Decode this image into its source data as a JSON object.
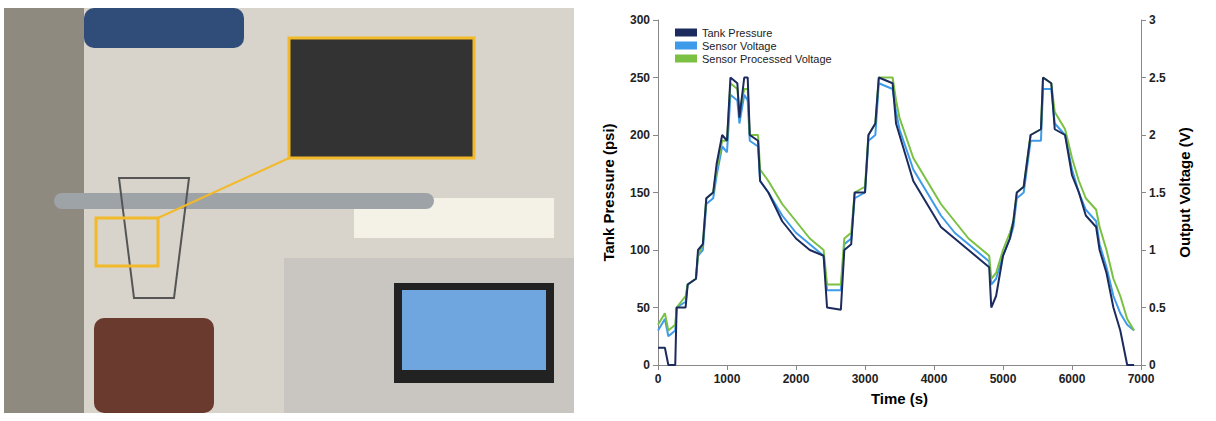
{
  "chart_data": {
    "type": "line",
    "xlabel": "Time (s)",
    "ylabel": "Tank Pressure (psi)",
    "y2label": "Output Voltage (V)",
    "x": [
      0,
      100,
      150,
      250,
      270,
      400,
      430,
      550,
      580,
      650,
      700,
      800,
      850,
      930,
      1000,
      1050,
      1150,
      1180,
      1250,
      1300,
      1330,
      1450,
      1480,
      1600,
      1800,
      2000,
      2200,
      2400,
      2450,
      2650,
      2700,
      2800,
      2850,
      3000,
      3050,
      3150,
      3200,
      3400,
      3450,
      3500,
      3700,
      3900,
      4100,
      4300,
      4500,
      4700,
      4800,
      4830,
      4900,
      5000,
      5100,
      5150,
      5200,
      5300,
      5400,
      5550,
      5580,
      5700,
      5750,
      5900,
      6000,
      6100,
      6200,
      6350,
      6400,
      6500,
      6600,
      6700,
      6800,
      6900
    ],
    "series": [
      {
        "name": "Tank Pressure",
        "color": "#1c2b5e",
        "values": [
          15,
          15,
          0,
          0,
          50,
          50,
          70,
          75,
          100,
          105,
          145,
          150,
          175,
          200,
          195,
          250,
          245,
          215,
          250,
          250,
          200,
          195,
          160,
          150,
          125,
          110,
          100,
          95,
          50,
          48,
          100,
          105,
          150,
          150,
          200,
          210,
          250,
          245,
          210,
          200,
          160,
          140,
          120,
          110,
          100,
          90,
          85,
          50,
          60,
          95,
          110,
          125,
          150,
          155,
          200,
          205,
          250,
          245,
          205,
          200,
          165,
          150,
          130,
          120,
          100,
          80,
          50,
          30,
          0,
          0
        ]
      },
      {
        "name": "Sensor Voltage",
        "color": "#3d9be9",
        "axis": "y2",
        "values": [
          0.3,
          0.4,
          0.25,
          0.3,
          0.5,
          0.55,
          0.7,
          0.75,
          0.95,
          1.0,
          1.4,
          1.45,
          1.65,
          1.9,
          1.85,
          2.35,
          2.3,
          2.1,
          2.35,
          2.3,
          1.95,
          1.9,
          1.6,
          1.5,
          1.3,
          1.15,
          1.05,
          0.95,
          0.65,
          0.65,
          1.05,
          1.1,
          1.45,
          1.5,
          1.95,
          2.0,
          2.45,
          2.4,
          2.2,
          2.05,
          1.7,
          1.5,
          1.3,
          1.15,
          1.05,
          0.95,
          0.9,
          0.7,
          0.75,
          0.95,
          1.1,
          1.2,
          1.45,
          1.5,
          1.95,
          1.95,
          2.4,
          2.4,
          2.1,
          2.0,
          1.7,
          1.5,
          1.35,
          1.25,
          1.05,
          0.85,
          0.6,
          0.45,
          0.35,
          0.3
        ]
      },
      {
        "name": "Sensor Processed Voltage",
        "color": "#7ac143",
        "axis": "y2",
        "values": [
          0.35,
          0.45,
          0.3,
          0.35,
          0.5,
          0.6,
          0.7,
          0.75,
          0.95,
          1.05,
          1.45,
          1.5,
          1.7,
          1.95,
          1.95,
          2.45,
          2.4,
          2.2,
          2.4,
          2.4,
          2.0,
          2.0,
          1.7,
          1.6,
          1.4,
          1.25,
          1.1,
          1.0,
          0.7,
          0.7,
          1.1,
          1.15,
          1.5,
          1.55,
          2.0,
          2.1,
          2.5,
          2.5,
          2.3,
          2.15,
          1.8,
          1.6,
          1.4,
          1.25,
          1.1,
          1.0,
          0.95,
          0.75,
          0.8,
          1.0,
          1.15,
          1.25,
          1.5,
          1.55,
          2.0,
          2.05,
          2.5,
          2.45,
          2.2,
          2.05,
          1.8,
          1.6,
          1.45,
          1.35,
          1.2,
          1.0,
          0.75,
          0.6,
          0.4,
          0.3
        ]
      }
    ],
    "xlim": [
      0,
      7000
    ],
    "xticks": [
      0,
      1000,
      2000,
      3000,
      4000,
      5000,
      6000,
      7000
    ],
    "ylim": [
      0,
      300
    ],
    "yticks": [
      0,
      50,
      100,
      150,
      200,
      250,
      300
    ],
    "y2lim": [
      0,
      3
    ],
    "y2ticks": [
      0,
      0.5,
      1,
      1.5,
      2,
      2.5,
      3
    ],
    "grid": false,
    "legend": "upper left"
  }
}
